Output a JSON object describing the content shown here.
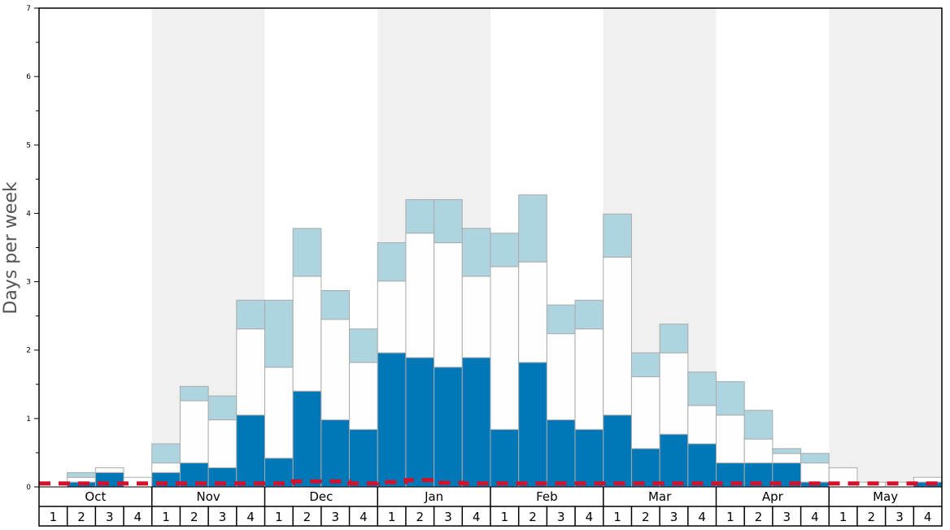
{
  "chart_data": {
    "type": "bar",
    "stacked": true,
    "title": "",
    "xlabel": "",
    "ylabel": "Days per week",
    "ylim": [
      0,
      7
    ],
    "yticks": [
      0,
      1,
      2,
      3,
      4,
      5,
      6,
      7
    ],
    "months": [
      "Oct",
      "Nov",
      "Dec",
      "Jan",
      "Feb",
      "Mar",
      "Apr",
      "May"
    ],
    "weeks_per_month": [
      "1",
      "2",
      "3",
      "4"
    ],
    "series": [
      {
        "name": "bottom",
        "color": "#0077b6",
        "values": [
          0,
          0.07,
          0.21,
          0,
          0.21,
          0.35,
          0.28,
          1.05,
          0.42,
          1.4,
          0.98,
          0.84,
          1.96,
          1.89,
          1.75,
          1.89,
          0.84,
          1.82,
          0.98,
          0.84,
          1.05,
          0.56,
          0.77,
          0.63,
          0.35,
          0.35,
          0.35,
          0.07,
          0,
          0,
          0,
          0.07
        ]
      },
      {
        "name": "middle",
        "color": "#fefefe",
        "values": [
          0,
          0.07,
          0.07,
          0.14,
          0.14,
          0.91,
          0.7,
          1.26,
          1.33,
          1.68,
          1.47,
          0.98,
          1.05,
          1.82,
          1.82,
          1.19,
          2.38,
          1.47,
          1.26,
          1.47,
          2.31,
          1.05,
          1.19,
          0.56,
          0.7,
          0.35,
          0.14,
          0.28,
          0.28,
          0.07,
          0.07,
          0.07
        ]
      },
      {
        "name": "top",
        "color": "#aed4e0",
        "values": [
          0,
          0.07,
          0,
          0,
          0.28,
          0.21,
          0.35,
          0.42,
          0.98,
          0.7,
          0.42,
          0.49,
          0.56,
          0.49,
          0.63,
          0.7,
          0.49,
          0.98,
          0.42,
          0.42,
          0.63,
          0.35,
          0.42,
          0.49,
          0.49,
          0.42,
          0.07,
          0.14,
          0,
          0,
          0,
          0
        ]
      }
    ],
    "reference_line": {
      "style": "dashed",
      "color": "#d6102a",
      "values": [
        0.05,
        0.05,
        0.05,
        0.05,
        0.05,
        0.05,
        0.05,
        0.05,
        0.05,
        0.08,
        0.08,
        0.05,
        0.07,
        0.1,
        0.06,
        0.05,
        0.05,
        0.05,
        0.05,
        0.05,
        0.05,
        0.05,
        0.05,
        0.05,
        0.05,
        0.05,
        0.05,
        0.05,
        0.05,
        0.05,
        0.05,
        0.05
      ]
    },
    "shaded_months": [
      "Nov",
      "Jan",
      "Mar",
      "May"
    ],
    "grid": false
  }
}
